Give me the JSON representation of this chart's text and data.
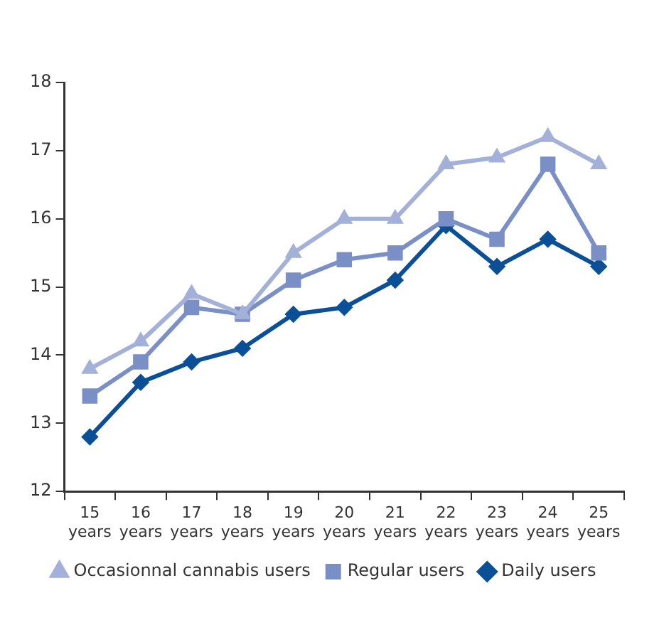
{
  "chart_data": {
    "type": "line",
    "categories": [
      "15 years",
      "16 years",
      "17 years",
      "18 years",
      "19 years",
      "20 years",
      "21 years",
      "22 years",
      "23 years",
      "24 years",
      "25 years"
    ],
    "series": [
      {
        "name": "Occasionnal cannabis users",
        "color": "#a3b1d9",
        "marker": "triangle",
        "values": [
          13.8,
          14.2,
          14.9,
          14.6,
          15.5,
          16.0,
          16.0,
          16.8,
          16.9,
          17.2,
          16.8
        ]
      },
      {
        "name": "Regular users",
        "color": "#7b8fc7",
        "marker": "square",
        "values": [
          13.4,
          13.9,
          14.7,
          14.6,
          15.1,
          15.4,
          15.5,
          16.0,
          15.7,
          16.8,
          15.5
        ]
      },
      {
        "name": "Daily users",
        "color": "#0b4f96",
        "marker": "diamond",
        "values": [
          12.8,
          13.6,
          13.9,
          14.1,
          14.6,
          14.7,
          15.1,
          15.9,
          15.3,
          15.7,
          15.3
        ]
      }
    ],
    "ylim": [
      12,
      18
    ],
    "yticks": [
      12,
      13,
      14,
      15,
      16,
      17,
      18
    ],
    "grid": false,
    "legend": "bottom",
    "line_style": "solid"
  }
}
